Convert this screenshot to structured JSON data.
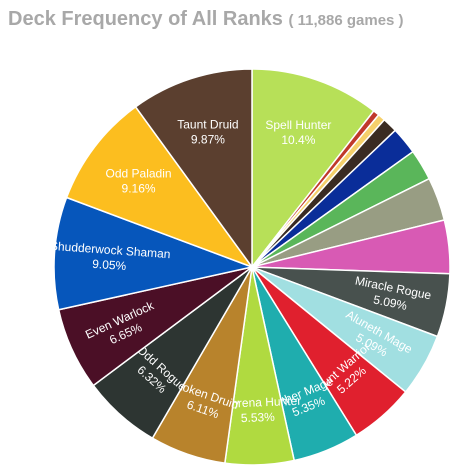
{
  "chart_data": {
    "type": "pie",
    "title": "Deck Frequency of All Ranks",
    "subtitle": "( 11,886 games )",
    "unit": "%",
    "series": [
      {
        "name": "Spell Hunter",
        "value": 10.4,
        "label": "10.4%",
        "color": "#b7e058"
      },
      {
        "name": "",
        "value": 0.5,
        "label": "",
        "color": "#c0392b"
      },
      {
        "name": "",
        "value": 0.6,
        "label": "",
        "color": "#f5d06b"
      },
      {
        "name": "",
        "value": 1.2,
        "label": "",
        "color": "#3a2b22"
      },
      {
        "name": "",
        "value": 2.2,
        "label": "",
        "color": "#0a2d99"
      },
      {
        "name": "",
        "value": 2.5,
        "label": "",
        "color": "#5ab65a"
      },
      {
        "name": "",
        "value": 3.5,
        "label": "",
        "color": "#989d83"
      },
      {
        "name": "",
        "value": 4.3,
        "label": "",
        "color": "#d85ab4"
      },
      {
        "name": "Miracle Rogue",
        "value": 5.09,
        "label": "5.09%",
        "color": "#48514e"
      },
      {
        "name": "Aluneth Mage",
        "value": 5.09,
        "label": "5.09%",
        "color": "#a1dfe1"
      },
      {
        "name": "Taunt Warrior",
        "value": 5.22,
        "label": "5.22%",
        "color": "#e0202e"
      },
      {
        "name": "Other Mage",
        "value": 5.35,
        "label": "5.35%",
        "color": "#1fadae"
      },
      {
        "name": "Kathrena Hunter",
        "value": 5.53,
        "label": "5.53%",
        "color": "#b0da40"
      },
      {
        "name": "Token Druid",
        "value": 6.11,
        "label": "6.11%",
        "color": "#b8832c"
      },
      {
        "name": "Odd Rogue",
        "value": 6.32,
        "label": "6.32%",
        "color": "#2d3532"
      },
      {
        "name": "Even Warlock",
        "value": 6.65,
        "label": "6.65%",
        "color": "#4b0f26"
      },
      {
        "name": "Shudderwock Shaman",
        "value": 9.05,
        "label": "9.05%",
        "color": "#0656bb"
      },
      {
        "name": "Odd Paladin",
        "value": 9.16,
        "label": "9.16%",
        "color": "#fcbe1f"
      },
      {
        "name": "Taunt Druid",
        "value": 9.87,
        "label": "9.87%",
        "color": "#5b3f2f"
      }
    ]
  }
}
